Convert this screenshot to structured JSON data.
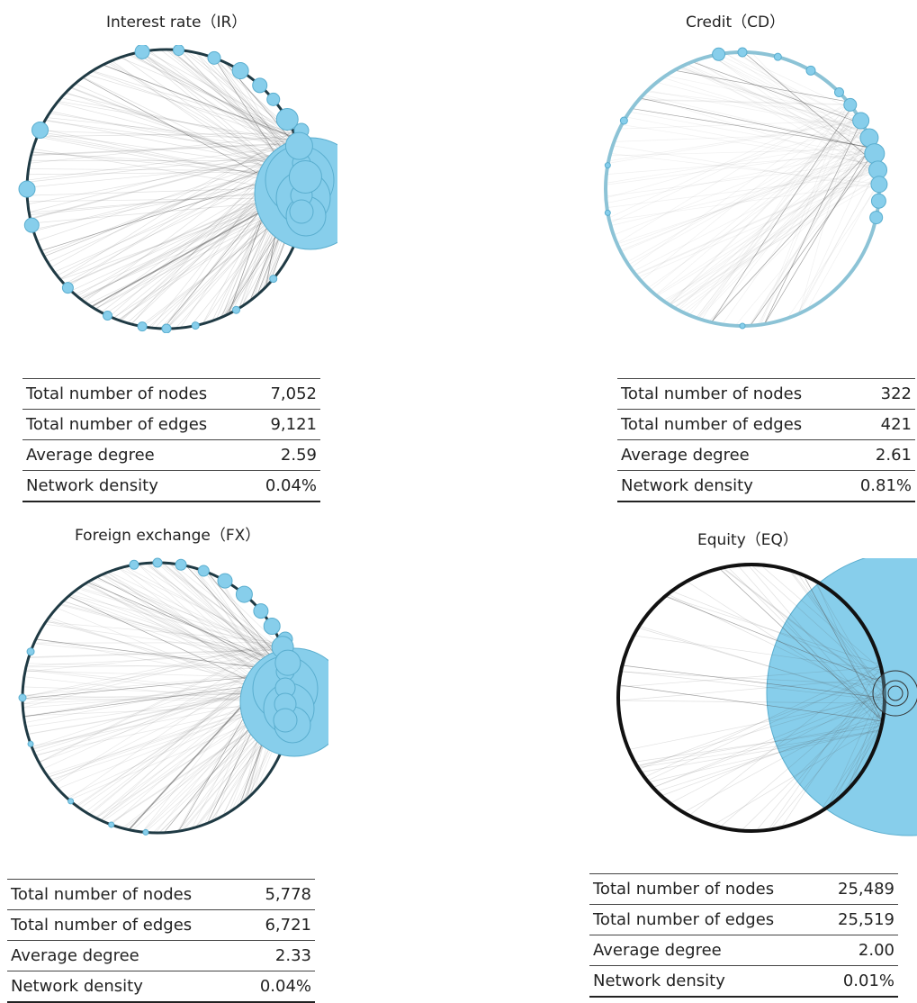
{
  "panels": [
    {
      "id": "ir",
      "title": "Interest rate（IR）",
      "stats": [
        {
          "label": "Total number of nodes",
          "value": "7,052"
        },
        {
          "label": "Total number of edges",
          "value": "9,121"
        },
        {
          "label": "Average degree",
          "value": "2.59"
        },
        {
          "label": "Network density",
          "value": "0.04%"
        }
      ]
    },
    {
      "id": "cd",
      "title": "Credit（CD）",
      "stats": [
        {
          "label": "Total number of nodes",
          "value": "322"
        },
        {
          "label": "Total number of edges",
          "value": "421"
        },
        {
          "label": "Average degree",
          "value": "2.61"
        },
        {
          "label": "Network density",
          "value": "0.81%"
        }
      ]
    },
    {
      "id": "fx",
      "title": "Foreign exchange（FX）",
      "stats": [
        {
          "label": "Total number of nodes",
          "value": "5,778"
        },
        {
          "label": "Total number of edges",
          "value": "6,721"
        },
        {
          "label": "Average degree",
          "value": "2.33"
        },
        {
          "label": "Network density",
          "value": "0.04%"
        }
      ]
    },
    {
      "id": "eq",
      "title": "Equity（EQ）",
      "stats": [
        {
          "label": "Total number of nodes",
          "value": "25,489"
        },
        {
          "label": "Total number of edges",
          "value": "25,519"
        },
        {
          "label": "Average degree",
          "value": "2.00"
        },
        {
          "label": "Network density",
          "value": "0.01%"
        }
      ]
    }
  ],
  "colors": {
    "node": "#87CEEB",
    "node_stroke": "#5aaecf",
    "ring_dark": "#1f3a44",
    "ring_light": "#8cc3d6",
    "edge": "#555555"
  }
}
